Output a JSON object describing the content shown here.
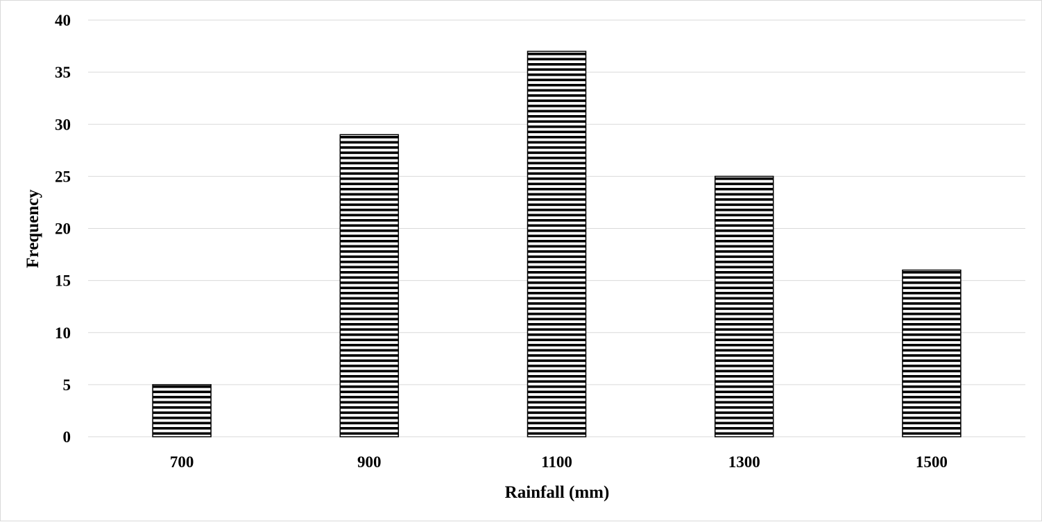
{
  "chart_data": {
    "type": "bar",
    "categories": [
      "700",
      "900",
      "1100",
      "1300",
      "1500"
    ],
    "values": [
      5,
      29,
      37,
      25,
      16
    ],
    "title": "",
    "xlabel": "Rainfall  (mm)",
    "ylabel": "Frequency",
    "ylim": [
      0,
      40
    ],
    "yticks": [
      "0",
      "5",
      "10",
      "15",
      "20",
      "25",
      "30",
      "35",
      "40"
    ],
    "grid": true,
    "legend": "none",
    "bar_fill": "horizontal-stripes",
    "colors": {
      "bar_stroke": "#000000",
      "stripe": "#000000",
      "grid": "#d9d9d9"
    }
  }
}
